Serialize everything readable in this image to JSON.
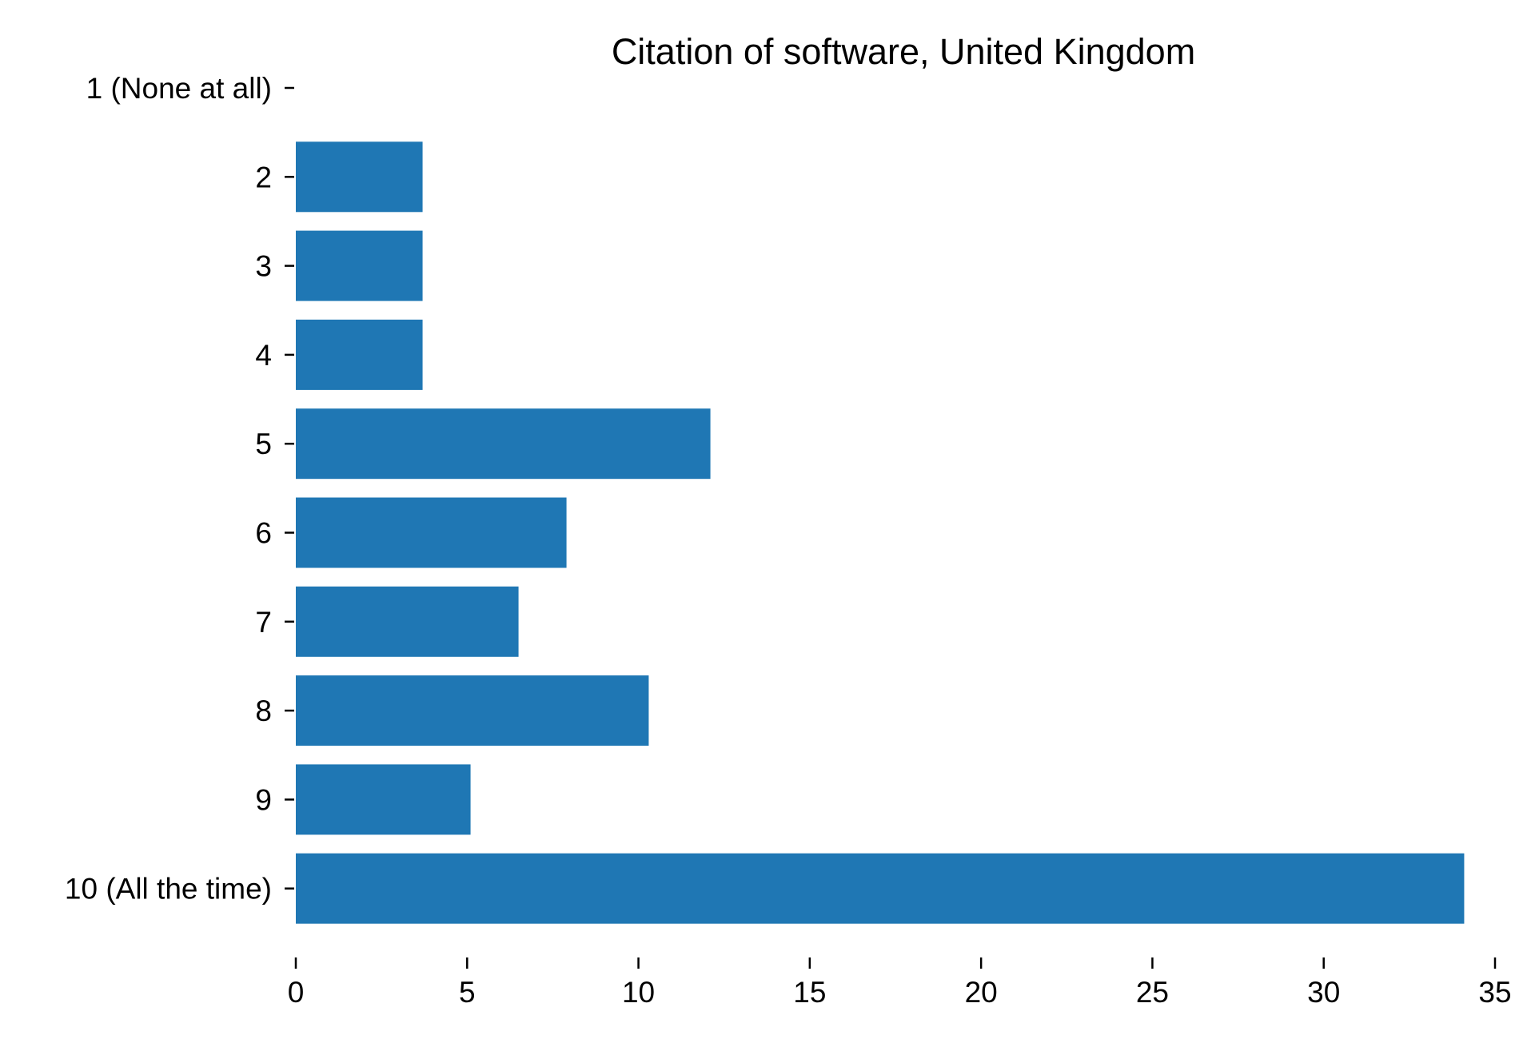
{
  "chart_data": {
    "type": "bar",
    "orientation": "horizontal",
    "title": "Citation of software, United Kingdom",
    "xlabel": "",
    "ylabel": "",
    "categories": [
      "1 (None at all)",
      "2",
      "3",
      "4",
      "5",
      "6",
      "7",
      "8",
      "9",
      "10 (All the time)"
    ],
    "values": [
      0,
      3.7,
      3.7,
      3.7,
      12.1,
      7.9,
      6.5,
      10.3,
      5.1,
      34.1
    ],
    "xlim": [
      0,
      35
    ],
    "xticks": [
      0,
      5,
      10,
      15,
      20,
      25,
      30,
      35
    ],
    "xtick_labels": [
      "0",
      "5",
      "10",
      "15",
      "20",
      "25",
      "30",
      "35"
    ],
    "bar_color": "#1f77b4",
    "grid": false,
    "legend": "none"
  }
}
